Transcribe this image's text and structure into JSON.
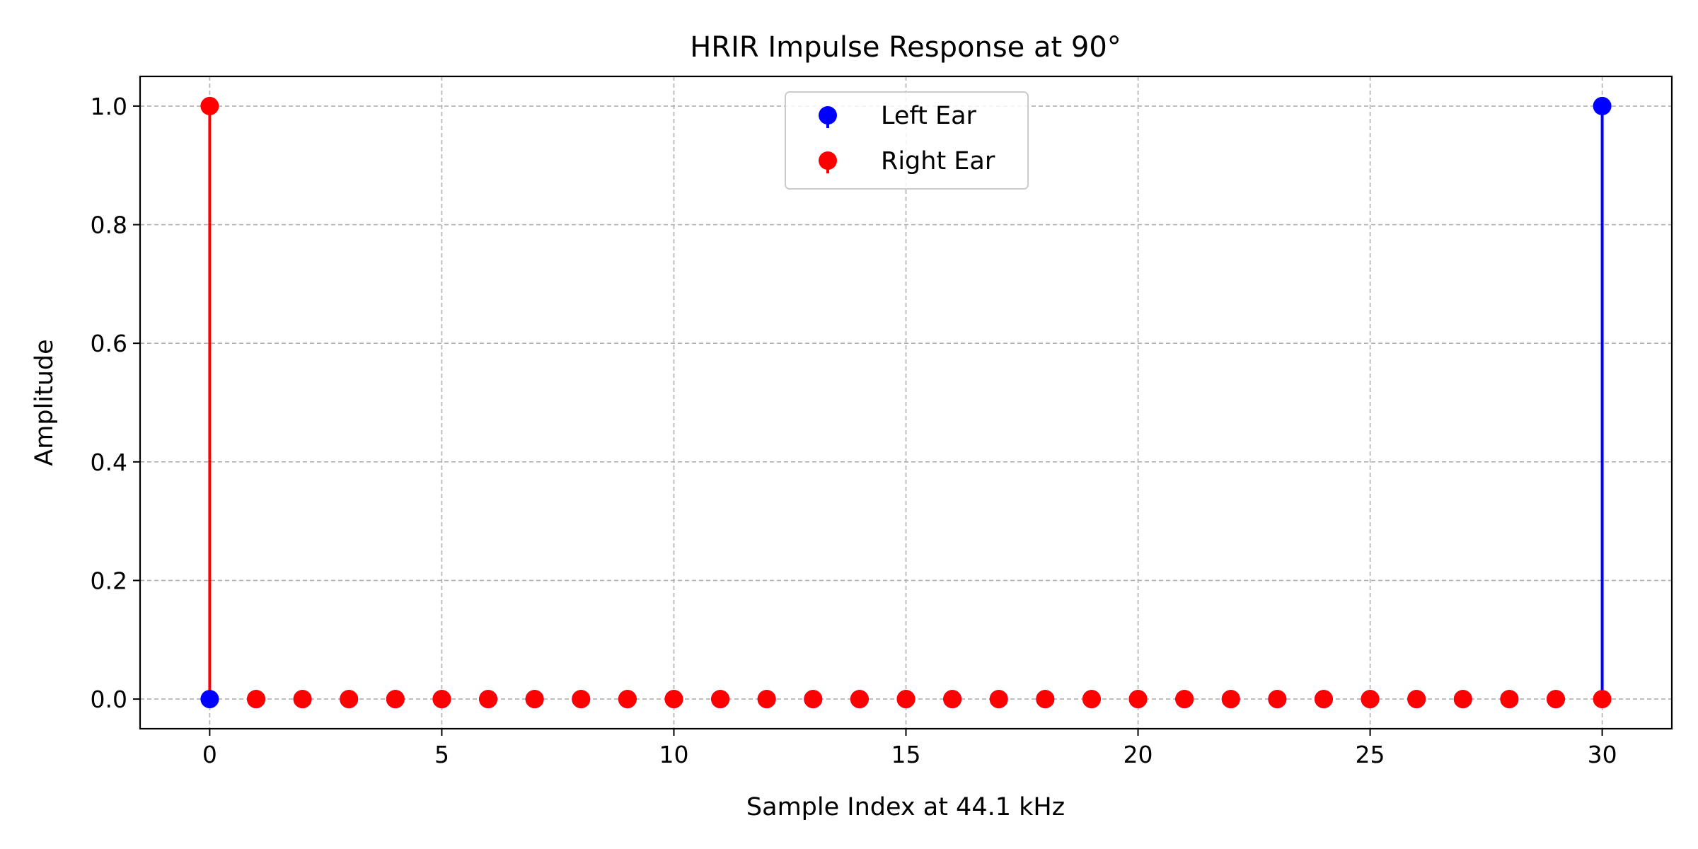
{
  "chart_data": {
    "type": "stem",
    "title": "HRIR Impulse Response at 90°",
    "xlabel": "Sample Index at 44.1 kHz",
    "ylabel": "Amplitude",
    "xlim": [
      -1.5,
      31.5
    ],
    "ylim": [
      -0.05,
      1.05
    ],
    "xticks": [
      0,
      5,
      10,
      15,
      20,
      25,
      30
    ],
    "yticks": [
      0.0,
      0.2,
      0.4,
      0.6,
      0.8,
      1.0
    ],
    "ytick_labels": [
      "0.0",
      "0.2",
      "0.4",
      "0.6",
      "0.8",
      "1.0"
    ],
    "grid": true,
    "legend_position": "upper-center",
    "x": [
      0,
      1,
      2,
      3,
      4,
      5,
      6,
      7,
      8,
      9,
      10,
      11,
      12,
      13,
      14,
      15,
      16,
      17,
      18,
      19,
      20,
      21,
      22,
      23,
      24,
      25,
      26,
      27,
      28,
      29,
      30
    ],
    "series": [
      {
        "name": "Left Ear",
        "color": "#0000ff",
        "values": [
          0,
          0,
          0,
          0,
          0,
          0,
          0,
          0,
          0,
          0,
          0,
          0,
          0,
          0,
          0,
          0,
          0,
          0,
          0,
          0,
          0,
          0,
          0,
          0,
          0,
          0,
          0,
          0,
          0,
          0,
          1
        ]
      },
      {
        "name": "Right Ear",
        "color": "#ff0000",
        "values": [
          1,
          0,
          0,
          0,
          0,
          0,
          0,
          0,
          0,
          0,
          0,
          0,
          0,
          0,
          0,
          0,
          0,
          0,
          0,
          0,
          0,
          0,
          0,
          0,
          0,
          0,
          0,
          0,
          0,
          0,
          0
        ]
      }
    ]
  }
}
